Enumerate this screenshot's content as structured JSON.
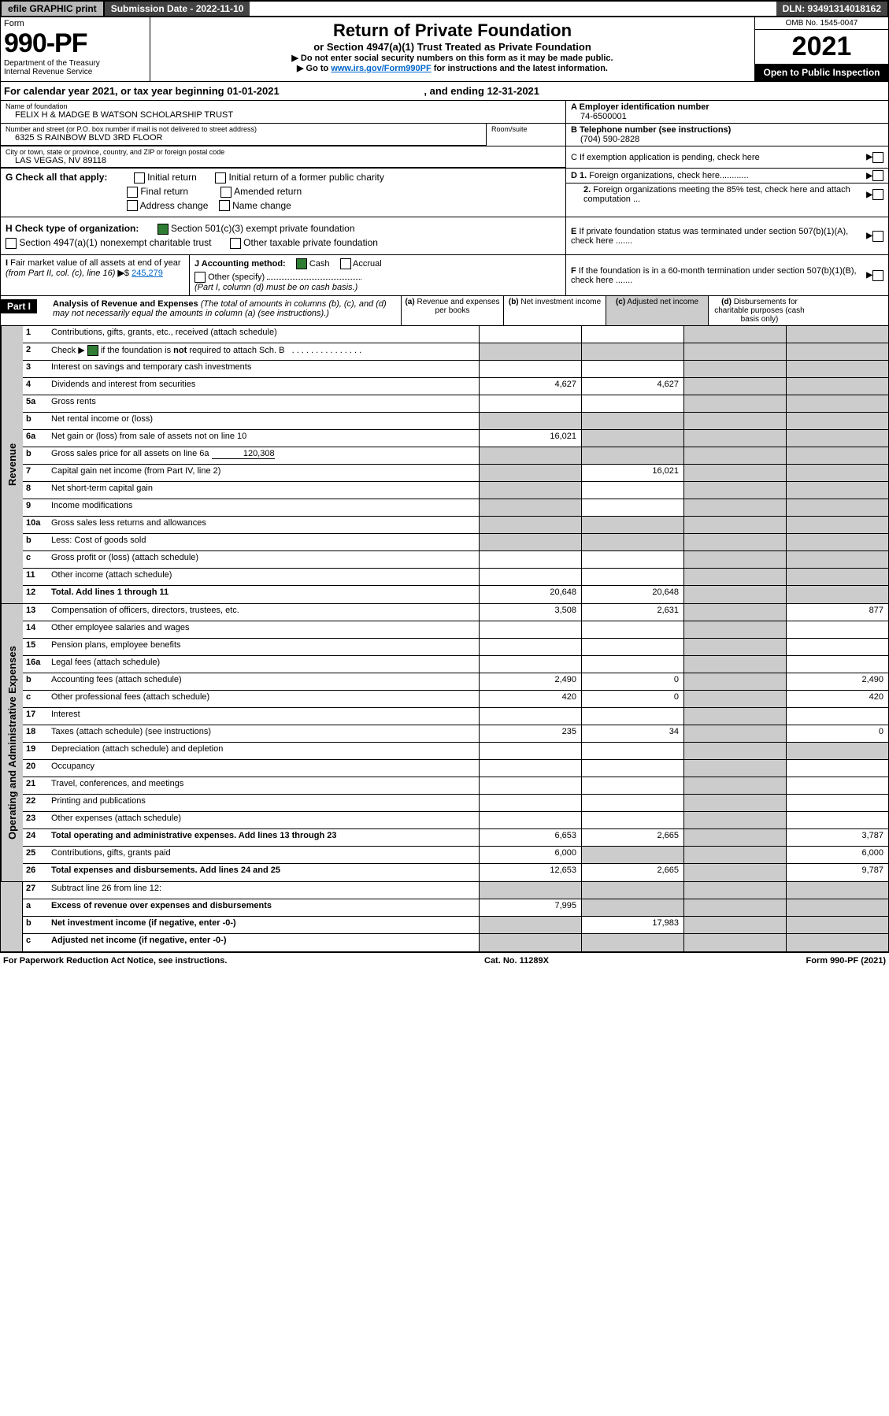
{
  "topbar": {
    "efile": "efile GRAPHIC print",
    "submission": "Submission Date - 2022-11-10",
    "dln": "DLN: 93491314018162"
  },
  "header": {
    "form_label": "Form",
    "form_num": "990-PF",
    "dept": "Department of the Treasury\nInternal Revenue Service",
    "title": "Return of Private Foundation",
    "subtitle": "or Section 4947(a)(1) Trust Treated as Private Foundation",
    "instr1": "▶ Do not enter social security numbers on this form as it may be made public.",
    "instr2_pre": "▶ Go to ",
    "instr2_link": "www.irs.gov/Form990PF",
    "instr2_post": " for instructions and the latest information.",
    "omb": "OMB No. 1545-0047",
    "year": "2021",
    "open": "Open to Public Inspection"
  },
  "calyear": "For calendar year 2021, or tax year beginning 01-01-2021",
  "calyear_end": ", and ending 12-31-2021",
  "name_label": "Name of foundation",
  "name": "FELIX H & MADGE B WATSON SCHOLARSHIP TRUST",
  "ein_label": "A Employer identification number",
  "ein": "74-6500001",
  "addr_label": "Number and street (or P.O. box number if mail is not delivered to street address)",
  "addr": "6325 S RAINBOW BLVD 3RD FLOOR",
  "room_label": "Room/suite",
  "phone_label": "B Telephone number (see instructions)",
  "phone": "(704) 590-2828",
  "city_label": "City or town, state or province, country, and ZIP or foreign postal code",
  "city": "LAS VEGAS, NV  89118",
  "c_label": "C If exemption application is pending, check here",
  "g_label": "G Check all that apply:",
  "g_initial": "Initial return",
  "g_initial_former": "Initial return of a former public charity",
  "g_final": "Final return",
  "g_amended": "Amended return",
  "g_addr": "Address change",
  "g_name": "Name change",
  "d1": "D 1. Foreign organizations, check here............",
  "d2": "2. Foreign organizations meeting the 85% test, check here and attach computation ...",
  "h_label": "H Check type of organization:",
  "h_501c3": "Section 501(c)(3) exempt private foundation",
  "h_4947": "Section 4947(a)(1) nonexempt charitable trust",
  "h_other": "Other taxable private foundation",
  "e_label": "E  If private foundation status was terminated under section 507(b)(1)(A), check here .......",
  "i_label": "I Fair market value of all assets at end of year (from Part II, col. (c), line 16)",
  "i_val": "245,279",
  "j_label": "J Accounting method:",
  "j_cash": "Cash",
  "j_accrual": "Accrual",
  "j_other": "Other (specify)",
  "j_note": "(Part I, column (d) must be on cash basis.)",
  "f_label": "F  If the foundation is in a 60-month termination under section 507(b)(1)(B), check here .......",
  "part1": "Part I",
  "analysis_title": "Analysis of Revenue and Expenses",
  "analysis_note": " (The total of amounts in columns (b), (c), and (d) may not necessarily equal the amounts in column (a) (see instructions).)",
  "col_a": "(a)",
  "col_a2": "Revenue and expenses per books",
  "col_b": "(b)",
  "col_b2": "Net investment income",
  "col_c": "(c)",
  "col_c2": "Adjusted net income",
  "col_d": "(d)",
  "col_d2": "Disbursements for charitable purposes (cash basis only)",
  "vert_revenue": "Revenue",
  "vert_expenses": "Operating and Administrative Expenses",
  "lines": {
    "1": {
      "n": "1",
      "d": "Contributions, gifts, grants, etc., received (attach schedule)"
    },
    "2": {
      "n": "2",
      "d": "Check ▶ ☑ if the foundation is not required to attach Sch. B"
    },
    "3": {
      "n": "3",
      "d": "Interest on savings and temporary cash investments"
    },
    "4": {
      "n": "4",
      "d": "Dividends and interest from securities",
      "a": "4,627",
      "b": "4,627"
    },
    "5a": {
      "n": "5a",
      "d": "Gross rents"
    },
    "5b": {
      "n": "b",
      "d": "Net rental income or (loss)"
    },
    "6a": {
      "n": "6a",
      "d": "Net gain or (loss) from sale of assets not on line 10",
      "a": "16,021"
    },
    "6b": {
      "n": "b",
      "d": "Gross sales price for all assets on line 6a",
      "inline": "120,308"
    },
    "7": {
      "n": "7",
      "d": "Capital gain net income (from Part IV, line 2)",
      "b": "16,021"
    },
    "8": {
      "n": "8",
      "d": "Net short-term capital gain"
    },
    "9": {
      "n": "9",
      "d": "Income modifications"
    },
    "10a": {
      "n": "10a",
      "d": "Gross sales less returns and allowances"
    },
    "10b": {
      "n": "b",
      "d": "Less: Cost of goods sold"
    },
    "10c": {
      "n": "c",
      "d": "Gross profit or (loss) (attach schedule)"
    },
    "11": {
      "n": "11",
      "d": "Other income (attach schedule)"
    },
    "12": {
      "n": "12",
      "d": "Total. Add lines 1 through 11",
      "a": "20,648",
      "b": "20,648",
      "bold": true
    },
    "13": {
      "n": "13",
      "d": "Compensation of officers, directors, trustees, etc.",
      "a": "3,508",
      "b": "2,631",
      "dd": "877"
    },
    "14": {
      "n": "14",
      "d": "Other employee salaries and wages"
    },
    "15": {
      "n": "15",
      "d": "Pension plans, employee benefits"
    },
    "16a": {
      "n": "16a",
      "d": "Legal fees (attach schedule)"
    },
    "16b": {
      "n": "b",
      "d": "Accounting fees (attach schedule)",
      "a": "2,490",
      "b": "0",
      "dd": "2,490"
    },
    "16c": {
      "n": "c",
      "d": "Other professional fees (attach schedule)",
      "a": "420",
      "b": "0",
      "dd": "420"
    },
    "17": {
      "n": "17",
      "d": "Interest"
    },
    "18": {
      "n": "18",
      "d": "Taxes (attach schedule) (see instructions)",
      "a": "235",
      "b": "34",
      "dd": "0"
    },
    "19": {
      "n": "19",
      "d": "Depreciation (attach schedule) and depletion"
    },
    "20": {
      "n": "20",
      "d": "Occupancy"
    },
    "21": {
      "n": "21",
      "d": "Travel, conferences, and meetings"
    },
    "22": {
      "n": "22",
      "d": "Printing and publications"
    },
    "23": {
      "n": "23",
      "d": "Other expenses (attach schedule)"
    },
    "24": {
      "n": "24",
      "d": "Total operating and administrative expenses. Add lines 13 through 23",
      "a": "6,653",
      "b": "2,665",
      "dd": "3,787",
      "bold": true
    },
    "25": {
      "n": "25",
      "d": "Contributions, gifts, grants paid",
      "a": "6,000",
      "dd": "6,000"
    },
    "26": {
      "n": "26",
      "d": "Total expenses and disbursements. Add lines 24 and 25",
      "a": "12,653",
      "b": "2,665",
      "dd": "9,787",
      "bold": true
    },
    "27": {
      "n": "27",
      "d": "Subtract line 26 from line 12:"
    },
    "27a": {
      "n": "a",
      "d": "Excess of revenue over expenses and disbursements",
      "a": "7,995",
      "bold": true
    },
    "27b": {
      "n": "b",
      "d": "Net investment income (if negative, enter -0-)",
      "b": "17,983",
      "bold": true
    },
    "27c": {
      "n": "c",
      "d": "Adjusted net income (if negative, enter -0-)",
      "bold": true
    }
  },
  "footer": {
    "left": "For Paperwork Reduction Act Notice, see instructions.",
    "mid": "Cat. No. 11289X",
    "right": "Form 990-PF (2021)"
  },
  "colors": {
    "grey": "#cccccc",
    "darkgrey": "#b8b8b8",
    "black": "#000000",
    "green": "#2e7d32",
    "link": "#0066cc"
  }
}
